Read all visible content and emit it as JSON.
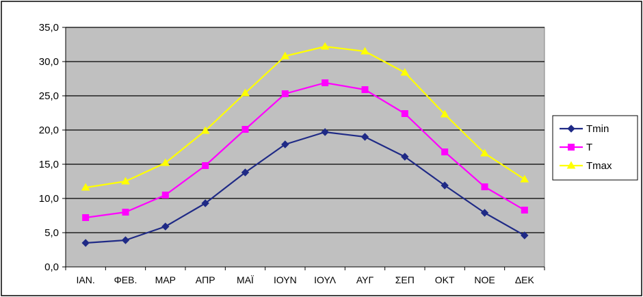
{
  "chart_data": {
    "type": "line",
    "categories": [
      "ΙΑΝ.",
      "ΦΕΒ.",
      "ΜΑΡ",
      "ΑΠΡ",
      "ΜΑΪ",
      "ΙΟΥΝ",
      "ΙΟΥΛ",
      "ΑΥΓ",
      "ΣΕΠ",
      "ΟΚΤ",
      "ΝΟΕ",
      "ΔΕΚ"
    ],
    "series": [
      {
        "name": "Tmin",
        "color": "#1f2a86",
        "marker": "diamond",
        "values": [
          3.5,
          3.9,
          5.9,
          9.3,
          13.8,
          17.9,
          19.7,
          19.0,
          16.1,
          11.9,
          7.9,
          4.6
        ]
      },
      {
        "name": "T",
        "color": "#ff00ff",
        "marker": "square",
        "values": [
          7.2,
          8.0,
          10.5,
          14.8,
          20.1,
          25.3,
          26.9,
          25.9,
          22.4,
          16.8,
          11.7,
          8.3
        ]
      },
      {
        "name": "Tmax",
        "color": "#ffff00",
        "marker": "triangle",
        "values": [
          11.6,
          12.5,
          15.2,
          19.9,
          25.4,
          30.8,
          32.2,
          31.5,
          28.4,
          22.3,
          16.6,
          12.8
        ]
      }
    ],
    "ylim": [
      0,
      35
    ],
    "yticks": [
      "0,0",
      "5,0",
      "10,0",
      "15,0",
      "20,0",
      "25,0",
      "30,0",
      "35,0"
    ],
    "title": "",
    "xlabel": "",
    "ylabel": "",
    "grid": true,
    "plot_background": "#c0c0c0",
    "legend_position": "right"
  }
}
